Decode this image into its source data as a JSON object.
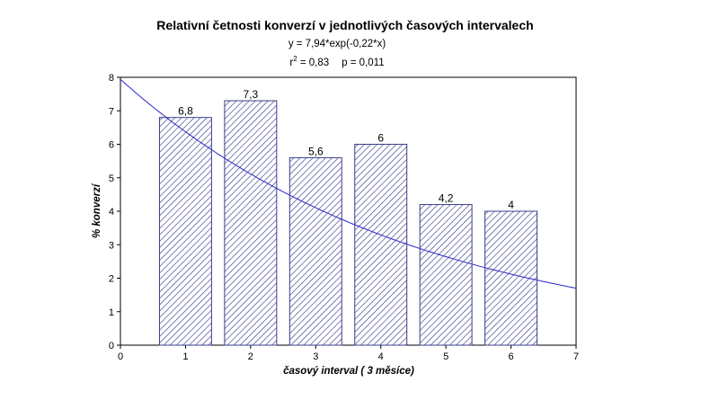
{
  "chart_data": {
    "type": "bar",
    "title": "Relativní četnosti konverzí v jednotlivých časových intervalech",
    "equation": "y = 7,94*exp(-0,22*x)",
    "stats": {
      "r2_prefix": "r",
      "r2_sup": "2",
      "r2_value": " = 0,83",
      "p_text": "p = 0,011"
    },
    "xlabel": "časový interval ( 3 měsíce)",
    "ylabel": "% konverzí",
    "x": [
      1,
      2,
      3,
      4,
      5,
      6
    ],
    "values": [
      6.8,
      7.3,
      5.6,
      6,
      4.2,
      4
    ],
    "value_labels": [
      "6,8",
      "7,3",
      "5,6",
      "6",
      "4,2",
      "4"
    ],
    "xlim": [
      0,
      7
    ],
    "ylim": [
      0,
      8
    ],
    "xticks": [
      "0",
      "1",
      "2",
      "3",
      "4",
      "5",
      "6",
      "7"
    ],
    "yticks": [
      "0",
      "1",
      "2",
      "3",
      "4",
      "5",
      "6",
      "7",
      "8"
    ],
    "bar_width": 0.8,
    "fit": {
      "type": "exponential",
      "a": 7.94,
      "b": -0.22
    },
    "bar_fill": "hatched",
    "bar_color": "#3a3d8c",
    "fit_color": "#2828c8",
    "grid": false
  }
}
